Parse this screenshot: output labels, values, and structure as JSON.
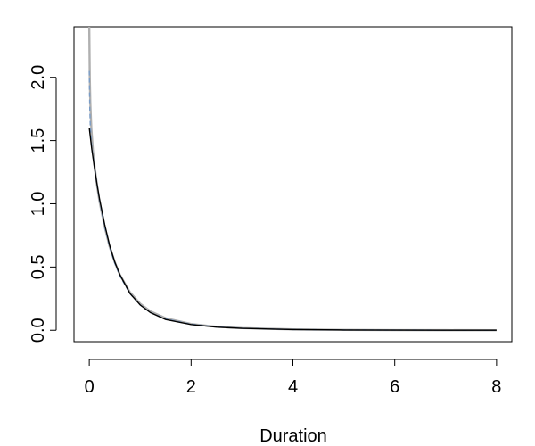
{
  "chart_data": {
    "type": "line",
    "title": "",
    "xlabel": "Duration",
    "ylabel": "",
    "xlim": [
      -0.3,
      8.3
    ],
    "ylim": [
      -0.09,
      2.4
    ],
    "xticks": [
      0,
      2,
      4,
      6,
      8
    ],
    "yticks": [
      0.0,
      0.5,
      1.0,
      1.5,
      2.0
    ],
    "xtick_labels": [
      "0",
      "2",
      "4",
      "6",
      "8"
    ],
    "ytick_labels": [
      "0.0",
      "0.5",
      "1.0",
      "1.5",
      "2.0"
    ],
    "grid": false,
    "legend": "none",
    "series": [
      {
        "color": "#b0b0b0",
        "style": "solid",
        "x": [
          0.0,
          0.005,
          0.01,
          0.02,
          0.04,
          0.07,
          0.1,
          0.15,
          0.2,
          0.3,
          0.4,
          0.5,
          0.6,
          0.8,
          1.0,
          1.2,
          1.5,
          2.0,
          2.5,
          3.0,
          4.0,
          5.0,
          6.0,
          7.0,
          8.0
        ],
        "y": [
          2.4,
          2.2,
          2.0,
          1.8,
          1.6,
          1.43,
          1.31,
          1.15,
          1.02,
          0.82,
          0.66,
          0.54,
          0.44,
          0.3,
          0.21,
          0.15,
          0.095,
          0.05,
          0.028,
          0.017,
          0.007,
          0.003,
          0.0015,
          0.0008,
          0.0004
        ]
      },
      {
        "color": "#7a9cc6",
        "style": "dashed",
        "x": [
          0.0,
          0.01,
          0.02,
          0.05,
          0.1,
          0.15,
          0.2,
          0.3,
          0.4,
          0.5,
          0.6,
          0.8,
          1.0,
          1.2,
          1.5,
          2.0,
          2.5,
          3.0,
          4.0,
          5.0,
          6.0,
          7.0,
          8.0
        ],
        "y": [
          2.05,
          1.75,
          1.62,
          1.44,
          1.3,
          1.16,
          1.03,
          0.82,
          0.66,
          0.53,
          0.43,
          0.29,
          0.2,
          0.14,
          0.09,
          0.048,
          0.027,
          0.016,
          0.006,
          0.0025,
          0.0012,
          0.0006,
          0.0003
        ]
      },
      {
        "color": "#000000",
        "style": "solid",
        "x": [
          0.0,
          0.05,
          0.1,
          0.15,
          0.2,
          0.3,
          0.4,
          0.5,
          0.6,
          0.8,
          1.0,
          1.2,
          1.5,
          2.0,
          2.5,
          3.0,
          4.0,
          5.0,
          6.0,
          7.0,
          8.0
        ],
        "y": [
          1.6,
          1.43,
          1.29,
          1.16,
          1.04,
          0.84,
          0.67,
          0.54,
          0.44,
          0.29,
          0.2,
          0.14,
          0.085,
          0.045,
          0.025,
          0.015,
          0.006,
          0.0025,
          0.001,
          0.0005,
          0.0002
        ]
      }
    ]
  }
}
